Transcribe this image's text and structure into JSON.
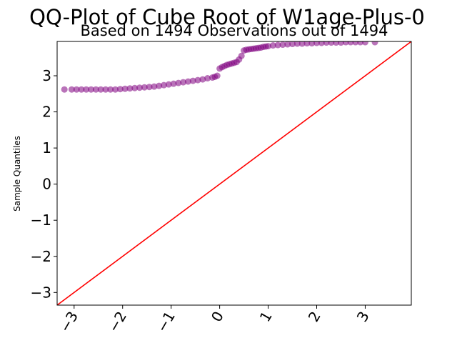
{
  "chart_data": {
    "type": "scatter",
    "title": "QQ-Plot of Cube Root of W1age-Plus-0",
    "subtitle": "Based on 1494 Observations out of 1494",
    "xlabel": "",
    "ylabel": "Sample Quantiles",
    "xlim": [
      -3.35,
      3.95
    ],
    "ylim": [
      -3.35,
      3.95
    ],
    "x_ticks": [
      -3,
      -2,
      -1,
      0,
      1,
      2,
      3
    ],
    "x_tick_labels": [
      "−3",
      "−2",
      "−1",
      "0",
      "1",
      "2",
      "3"
    ],
    "y_ticks": [
      -3,
      -2,
      -1,
      0,
      1,
      2,
      3
    ],
    "y_tick_labels": [
      "−3",
      "−2",
      "−1",
      "0",
      "1",
      "2",
      "3"
    ],
    "grid": false,
    "series": [
      {
        "kind": "points",
        "color": "#800080",
        "x": [
          -3.2,
          -3.05,
          -2.95,
          -2.85,
          -2.75,
          -2.65,
          -2.55,
          -2.45,
          -2.35,
          -2.25,
          -2.15,
          -2.05,
          -1.95,
          -1.85,
          -1.75,
          -1.65,
          -1.55,
          -1.45,
          -1.35,
          -1.25,
          -1.15,
          -1.05,
          -0.95,
          -0.85,
          -0.75,
          -0.65,
          -0.55,
          -0.45,
          -0.35,
          -0.25,
          -0.15,
          -0.1,
          -0.05,
          0.0,
          0.05,
          0.1,
          0.15,
          0.2,
          0.25,
          0.3,
          0.35,
          0.4,
          0.45,
          0.5,
          0.55,
          0.6,
          0.65,
          0.7,
          0.75,
          0.8,
          0.85,
          0.9,
          0.95,
          1.0,
          1.1,
          1.2,
          1.3,
          1.4,
          1.5,
          1.6,
          1.7,
          1.8,
          1.9,
          2.0,
          2.1,
          2.2,
          2.3,
          2.4,
          2.5,
          2.6,
          2.7,
          2.8,
          2.9,
          3.0,
          3.2
        ],
        "y": [
          2.62,
          2.62,
          2.62,
          2.62,
          2.62,
          2.62,
          2.62,
          2.62,
          2.62,
          2.62,
          2.62,
          2.63,
          2.64,
          2.65,
          2.66,
          2.67,
          2.68,
          2.69,
          2.7,
          2.72,
          2.74,
          2.76,
          2.78,
          2.8,
          2.82,
          2.84,
          2.86,
          2.88,
          2.9,
          2.93,
          2.95,
          2.97,
          3.0,
          3.2,
          3.24,
          3.27,
          3.3,
          3.32,
          3.34,
          3.36,
          3.38,
          3.45,
          3.55,
          3.7,
          3.72,
          3.73,
          3.74,
          3.75,
          3.76,
          3.77,
          3.78,
          3.8,
          3.81,
          3.82,
          3.84,
          3.85,
          3.86,
          3.87,
          3.88,
          3.89,
          3.89,
          3.9,
          3.9,
          3.91,
          3.91,
          3.92,
          3.92,
          3.92,
          3.92,
          3.93,
          3.93,
          3.93,
          3.93,
          3.93,
          3.93
        ]
      },
      {
        "kind": "reference-line",
        "color": "#ff0000",
        "x": [
          -3.35,
          3.95
        ],
        "y": [
          -3.35,
          3.95
        ]
      }
    ]
  }
}
